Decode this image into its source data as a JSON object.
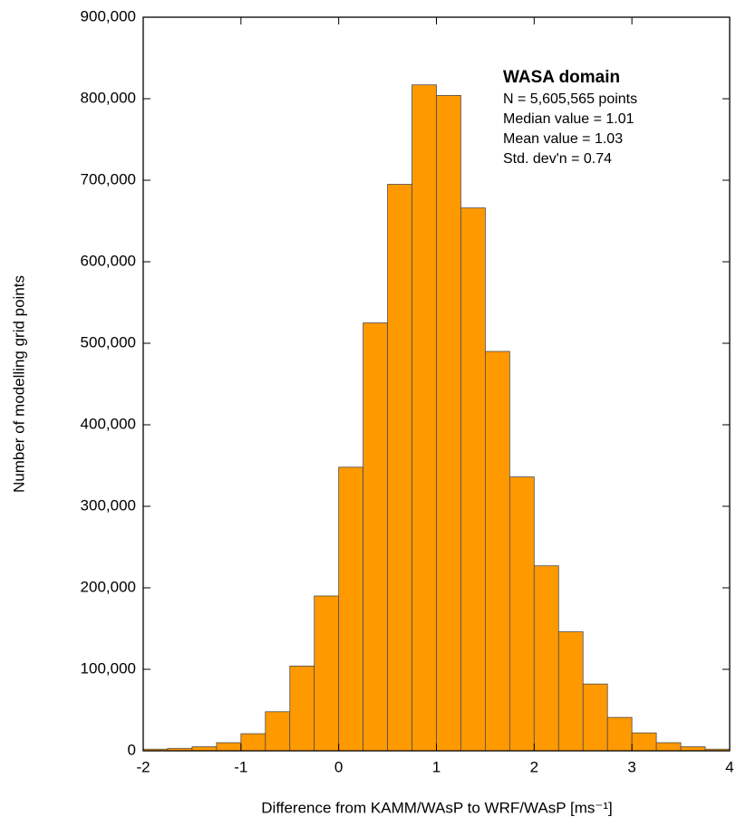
{
  "chart_data": {
    "type": "histogram",
    "xlabel": "Difference from KAMM/WAsP to WRF/WAsP [ms⁻¹]",
    "ylabel": "Number of modelling grid points",
    "bins": [
      -2,
      -1.75,
      -1.5,
      -1.25,
      -1,
      -0.75,
      -0.5,
      -0.25,
      0,
      0.25,
      0.5,
      0.75,
      1,
      1.25,
      1.5,
      1.75,
      2,
      2.25,
      2.5,
      2.75,
      3,
      3.25,
      3.5,
      3.75,
      4
    ],
    "values": [
      2000,
      3000,
      5000,
      10000,
      21000,
      48000,
      104000,
      190000,
      348000,
      525000,
      695000,
      817000,
      804000,
      666000,
      490000,
      336000,
      227000,
      146000,
      82000,
      41000,
      22000,
      10000,
      5000,
      2000
    ],
    "color": "#ff9900",
    "edgecolor": "#4d4d4d",
    "xlim": [
      -2,
      4
    ],
    "xticks": [
      -2,
      -1,
      0,
      1,
      2,
      3,
      4
    ],
    "ylim": [
      0,
      900000
    ],
    "yticks": [
      0,
      {
        "value": 100000,
        "label": "100,000"
      },
      {
        "value": 200000,
        "label": "200,000"
      },
      {
        "value": 300000,
        "label": "300,000"
      },
      {
        "value": 400000,
        "label": "400,000"
      },
      {
        "value": 500000,
        "label": "500,000"
      },
      {
        "value": 600000,
        "label": "600,000"
      },
      {
        "value": 700000,
        "label": "700,000"
      },
      {
        "value": 800000,
        "label": "800,000"
      },
      {
        "value": 900000,
        "label": "900,000"
      }
    ],
    "annotation": {
      "title": "WASA domain",
      "lines": [
        "N = 5,605,565 points",
        "Median value = 1.01",
        "Mean value = 1.03",
        "Std. dev'n = 0.74"
      ]
    }
  }
}
